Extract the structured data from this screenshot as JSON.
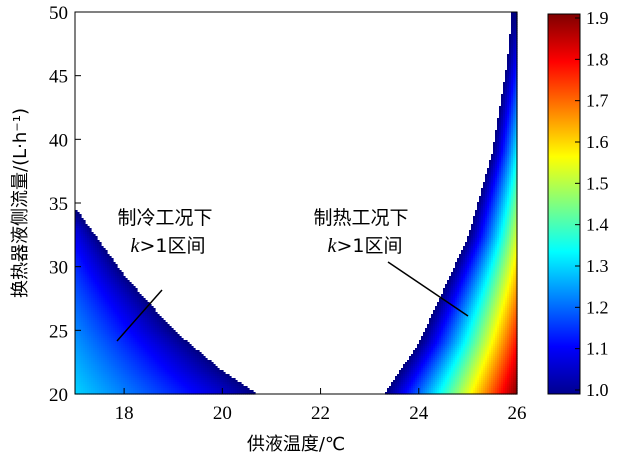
{
  "chart_data": {
    "type": "heatmap",
    "xlabel": "供液温度/℃",
    "ylabel": "换热器液侧流量/(L·h⁻¹)",
    "xlim": [
      17,
      26
    ],
    "ylim": [
      20,
      50
    ],
    "x_ticks": [
      "18",
      "20",
      "22",
      "24",
      "26"
    ],
    "x_tick_values": [
      18,
      20,
      22,
      24,
      26
    ],
    "y_ticks": [
      "20",
      "25",
      "30",
      "35",
      "40",
      "45",
      "50"
    ],
    "y_tick_values": [
      20,
      25,
      30,
      35,
      40,
      45,
      50
    ],
    "colorbar": {
      "min": 1.0,
      "max": 1.9,
      "ticks": [
        "1.0",
        "1.1",
        "1.2",
        "1.3",
        "1.4",
        "1.5",
        "1.6",
        "1.7",
        "1.8",
        "1.9"
      ],
      "tick_values": [
        1.0,
        1.1,
        1.2,
        1.3,
        1.4,
        1.5,
        1.6,
        1.7,
        1.8,
        1.9
      ]
    },
    "regions": [
      {
        "name_line1": "制冷工况下",
        "name_k": "k",
        "name_rest": ">1区间",
        "boundary": [
          [
            17.0,
            34.6
          ],
          [
            18.0,
            29.3
          ],
          [
            19.0,
            25.0
          ],
          [
            20.0,
            21.8
          ],
          [
            20.7,
            20.0
          ]
        ],
        "k_at_boundary": 1.0,
        "k_max": 1.3,
        "k_max_at": [
          17.0,
          20.0
        ]
      },
      {
        "name_line1": "制热工况下",
        "name_k": "k",
        "name_rest": ">1区间",
        "boundary": [
          [
            23.3,
            20.0
          ],
          [
            24.0,
            24.0
          ],
          [
            25.0,
            32.3
          ],
          [
            25.5,
            39.0
          ],
          [
            25.8,
            46.0
          ],
          [
            25.9,
            50.0
          ]
        ],
        "k_at_boundary": 1.0,
        "k_max": 1.9,
        "k_max_at": [
          26.0,
          20.0
        ]
      }
    ]
  }
}
